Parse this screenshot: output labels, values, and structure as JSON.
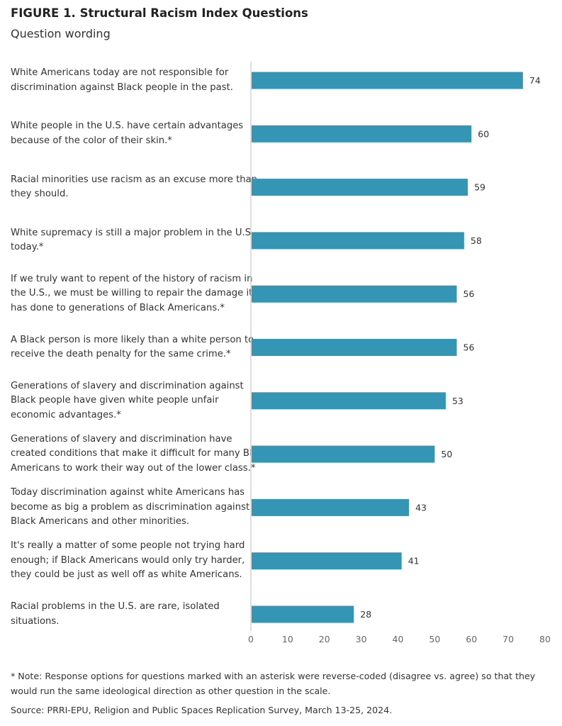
{
  "figure": {
    "title": "FIGURE 1. Structural Racism Index Questions",
    "subtitle": "Question wording"
  },
  "chart_data": {
    "type": "bar",
    "orientation": "horizontal",
    "categories": [
      "White Americans today are not responsible for discrimination against Black people in the past.",
      "White people in the U.S. have certain advantages because of the color of their skin.*",
      "Racial minorities use racism as an excuse more than they should.",
      "White supremacy is still a major problem in the U.S. today.*",
      "If we truly want to repent of the history of racism in the U.S., we must be willing to repair the damage it has done to generations of Black Americans.*",
      "A Black person is more likely than a white person to receive the death penalty for the same crime.*",
      "Generations of slavery and discrimination against Black people have given white people unfair economic advantages.*",
      "Generations of slavery and discrimination have created conditions that make it difficult for many Black Americans to work their way out of the lower class.*",
      "Today discrimination against white Americans has become as big a problem as discrimination against Black Americans and other minorities.",
      "It's really a matter of some people not trying hard enough; if Black Americans would only try harder, they could be just as well off as white Americans.",
      "Racial problems in the U.S. are rare, isolated situations."
    ],
    "category_lines": [
      [
        "White Americans today are not responsible for",
        "discrimination against Black people in the past."
      ],
      [
        "White people in the U.S. have certain advantages",
        "because of the color of their skin.*"
      ],
      [
        "Racial minorities use racism as an excuse more than",
        "they should."
      ],
      [
        "White supremacy is still a major problem in the U.S.",
        "today.*"
      ],
      [
        "If we truly want to repent of the history of racism in",
        "the U.S., we must be willing to repair the damage it",
        "has done to generations of Black Americans.*"
      ],
      [
        "A Black person is more likely than a white person to",
        "receive the death penalty for the same crime.*"
      ],
      [
        "Generations of slavery and discrimination against",
        "Black people have given white people unfair",
        "economic advantages.*"
      ],
      [
        "Generations of slavery and discrimination have",
        "created conditions that make it difficult for many Black",
        "Americans to work their way out of the lower class.*"
      ],
      [
        "Today discrimination against white Americans has",
        "become as big a problem as discrimination against",
        "Black Americans and other minorities."
      ],
      [
        "It's really a matter of some people not trying hard",
        "enough; if Black Americans would only try harder,",
        "they could be just as well off as white Americans."
      ],
      [
        "Racial problems in the U.S. are rare, isolated",
        "situations."
      ]
    ],
    "values": [
      74,
      60,
      59,
      58,
      56,
      56,
      53,
      50,
      43,
      41,
      28
    ],
    "xlim": [
      0,
      80
    ],
    "xticks": [
      0,
      10,
      20,
      30,
      40,
      50,
      60,
      70,
      80
    ],
    "grid": false,
    "colors": {
      "bar": "#3595B4",
      "axis": "#cccccc",
      "text": "#333333"
    }
  },
  "notes": {
    "footnote": "* Note: Response options for questions marked with an asterisk were reverse-coded (disagree vs. agree) so that they would run the same ideological direction as other question in the scale.",
    "source": "Source: PRRI-EPU, Religion and Public Spaces Replication Survey, March 13-25, 2024."
  }
}
